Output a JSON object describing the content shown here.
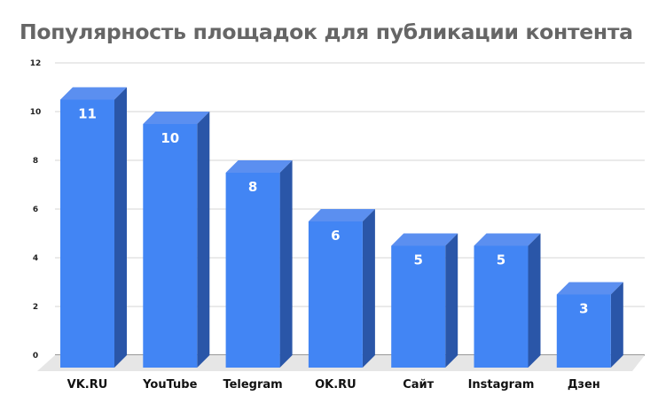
{
  "chart_data": {
    "type": "bar",
    "title": "Популярность площадок для публикации контента",
    "categories": [
      "VK.RU",
      "YouTube",
      "Telegram",
      "OK.RU",
      "Сайт",
      "Instagram",
      "Дзен"
    ],
    "values": [
      11,
      10,
      8,
      6,
      5,
      5,
      3
    ],
    "xlabel": "",
    "ylabel": "",
    "ylim": [
      0,
      12
    ],
    "yticks": [
      0,
      2,
      4,
      6,
      8,
      10,
      12
    ],
    "grid": true,
    "legend": null,
    "style": "3d-column",
    "colors": {
      "front": "#4285f4",
      "side": "#2a56a8",
      "top": "#5b8ff0",
      "floor": "#e6e6e6",
      "grid": "#dddddd",
      "title": "#666666"
    }
  }
}
